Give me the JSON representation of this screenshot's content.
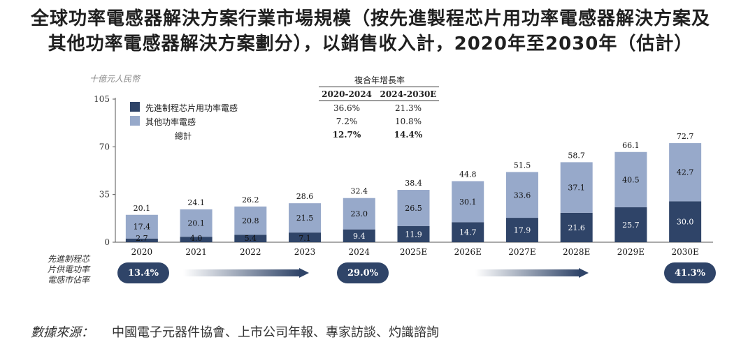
{
  "title_line1": "全球功率電感器解決方案行業市場規模（按先進製程芯片用功率電感器解決方案及",
  "title_line2": "其他功率電感器解決方案劃分），以銷售收入計，2020年至2030年（估計）",
  "unit_label": "十億元人民幣",
  "legend": {
    "advanced": "先進制程芯片用功率電感",
    "other": "其他功率電感",
    "total": "總計"
  },
  "cagr": {
    "header": "複合年增長率",
    "period1": "2020-2024",
    "period2": "2024-2030E",
    "advanced": [
      "36.6%",
      "21.3%"
    ],
    "other": [
      "7.2%",
      "10.8%"
    ],
    "total": [
      "12.7%",
      "14.4%"
    ]
  },
  "side_label": "先進制程芯片供電功率電感市佔率",
  "share_pills": [
    "13.4%",
    "29.0%",
    "41.3%"
  ],
  "source_label": "數據來源：",
  "source_value": "中國電子元器件協會、上市公司年報、專家訪談、灼識諮詢",
  "colors": {
    "advanced": "#2f4468",
    "other": "#97a9ca"
  },
  "chart_data": {
    "type": "bar",
    "stacked": true,
    "categories": [
      "2020",
      "2021",
      "2022",
      "2023",
      "2024",
      "2025E",
      "2026E",
      "2027E",
      "2028E",
      "2029E",
      "2030E"
    ],
    "series": [
      {
        "name": "先進制程芯片用功率電感",
        "values": [
          2.7,
          4.0,
          5.4,
          7.1,
          9.4,
          11.9,
          14.7,
          17.9,
          21.6,
          25.7,
          30.0
        ]
      },
      {
        "name": "其他功率電感",
        "values": [
          17.4,
          20.1,
          20.8,
          21.5,
          23.0,
          26.5,
          30.1,
          33.6,
          37.1,
          40.5,
          42.7
        ]
      }
    ],
    "totals": [
      20.1,
      24.1,
      26.2,
      28.6,
      32.4,
      38.4,
      44.8,
      51.5,
      58.7,
      66.1,
      72.7
    ],
    "yticks": [
      0,
      35,
      70,
      105
    ],
    "ylim": [
      0,
      105
    ]
  }
}
